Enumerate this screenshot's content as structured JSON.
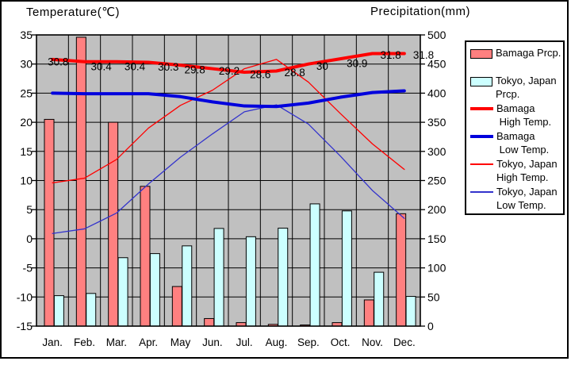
{
  "titles": {
    "temp_axis": "Temperature(℃)",
    "precip_axis": "Precipitation(mm)"
  },
  "colors": {
    "plot_bg": "#C0C0C0",
    "gridline": "#000000",
    "bamaga_prcp_bar": "#FF8080",
    "tokyo_prcp_bar": "#CCFFFF",
    "bamaga_high_line": "#FF0000",
    "bamaga_low_line": "#0000DD",
    "tokyo_high_line": "#FF0000",
    "tokyo_low_line": "#3333CC",
    "text": "#000000",
    "frame": "#000000"
  },
  "chart_data": {
    "type": "bar+line combo (climate chart)",
    "categories": [
      "Jan.",
      "Feb.",
      "Mar.",
      "Apr.",
      "May",
      "Jun.",
      "Jul.",
      "Aug.",
      "Sep.",
      "Oct.",
      "Nov.",
      "Dec."
    ],
    "temp_axis": {
      "title": "Temperature(℃)",
      "min": -15,
      "max": 35,
      "tick_step": 5,
      "ticks": [
        "35",
        "30",
        "25",
        "20",
        "15",
        "10",
        "5",
        "0",
        "-5",
        "-10",
        "-15"
      ],
      "side": "left"
    },
    "precip_axis": {
      "title": "Precipitation(mm)",
      "min": 0,
      "max": 500,
      "tick_step": 50,
      "ticks": [
        "500",
        "450",
        "400",
        "350",
        "300",
        "250",
        "200",
        "150",
        "100",
        "50",
        "0"
      ],
      "side": "right"
    },
    "grid": true,
    "legend_position": "right",
    "series": [
      {
        "name": "Bamaga Prcp.",
        "type": "bar",
        "axis": "precip",
        "color": "#FF8080",
        "values": [
          355,
          496,
          350,
          240,
          68,
          13,
          6,
          3,
          2,
          6,
          45,
          193
        ]
      },
      {
        "name": "Tokyo, Japan Prcp.",
        "type": "bar",
        "axis": "precip",
        "color": "#CCFFFF",
        "values": [
          52.3,
          56.1,
          117.5,
          124.5,
          137.8,
          167.7,
          153.5,
          168.2,
          209.9,
          197.8,
          92.5,
          51.0
        ]
      },
      {
        "name": "Bamaga High Temp.",
        "type": "line",
        "axis": "temp",
        "color": "#FF0000",
        "stroke_width": 4,
        "values": [
          30.8,
          30.4,
          30.4,
          30.3,
          29.8,
          29.2,
          28.6,
          28.8,
          30,
          30.9,
          31.8,
          31.8
        ],
        "point_labels": [
          "30.8",
          "30.4",
          "30.4",
          "30.3",
          "29.8",
          "29.2",
          "28.6",
          "28.8",
          "30",
          "30.9",
          "31.8",
          "31.8"
        ]
      },
      {
        "name": "Bamaga Low Temp.",
        "type": "line",
        "axis": "temp",
        "color": "#0000DD",
        "stroke_width": 4,
        "values": [
          25.0,
          24.9,
          24.9,
          24.9,
          24.4,
          23.5,
          22.8,
          22.7,
          23.3,
          24.3,
          25.1,
          25.4
        ]
      },
      {
        "name": "Tokyo, Japan High Temp.",
        "type": "line",
        "axis": "temp",
        "color": "#FF0000",
        "stroke_width": 1.3,
        "values": [
          9.6,
          10.4,
          13.6,
          19.0,
          22.9,
          25.5,
          29.2,
          30.8,
          26.9,
          21.5,
          16.3,
          11.9
        ]
      },
      {
        "name": "Tokyo, Japan Low Temp.",
        "type": "line",
        "axis": "temp",
        "color": "#3333CC",
        "stroke_width": 1.3,
        "values": [
          0.9,
          1.7,
          4.4,
          9.4,
          14.0,
          18.0,
          21.8,
          23.0,
          19.7,
          14.2,
          8.3,
          3.5
        ]
      }
    ]
  },
  "legend": {
    "items": [
      {
        "id": "bamaga-prcp",
        "swatch": "bar",
        "color": "#FF8080",
        "lines": [
          "Bamaga Prcp."
        ]
      },
      {
        "id": "tokyo-prcp",
        "swatch": "bar",
        "color": "#CCFFFF",
        "lines": [
          "Tokyo, Japan",
          "Prcp."
        ]
      },
      {
        "id": "bamaga-high",
        "swatch": "thick-line",
        "color": "#FF0000",
        "lines": [
          "Bamaga",
          " High Temp."
        ]
      },
      {
        "id": "bamaga-low",
        "swatch": "thick-line",
        "color": "#0000DD",
        "lines": [
          "Bamaga",
          " Low Temp."
        ]
      },
      {
        "id": "tokyo-high",
        "swatch": "thin-line",
        "color": "#FF0000",
        "lines": [
          "Tokyo, Japan",
          "High Temp."
        ]
      },
      {
        "id": "tokyo-low",
        "swatch": "thin-line",
        "color": "#3333CC",
        "lines": [
          "Tokyo, Japan",
          "Low Temp."
        ]
      }
    ]
  }
}
